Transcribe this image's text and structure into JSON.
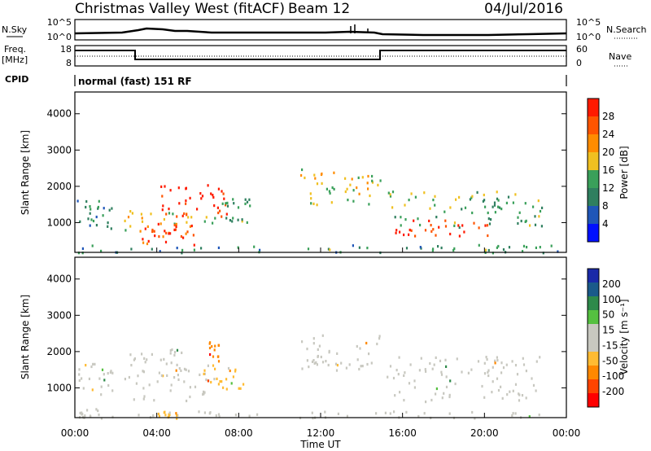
{
  "header": {
    "station": "Christmas Valley West (fitACF)",
    "beam": "Beam 12",
    "date": "04/Jul/2016"
  },
  "panel_labels": {
    "nsky": "N.Sky",
    "nsearch": "N.Search",
    "freq": "Freq.",
    "freq_unit": "[MHz]",
    "nave": "Nave",
    "cpid": "CPID",
    "cpid_value": "normal (fast) 151 RF",
    "nsky_ticks": [
      "10^5",
      "10^0"
    ],
    "nsearch_ticks": [
      "10^5",
      "10^0"
    ],
    "freq_ticks": [
      "18",
      "8"
    ],
    "nave_ticks": [
      "60",
      "0"
    ]
  },
  "colors": {
    "power_scale": [
      "#0010ff",
      "#1f56b8",
      "#2f7f5f",
      "#3aa05a",
      "#f0c020",
      "#ff8c00",
      "#ff5500",
      "#ff1a00"
    ],
    "velocity_scale": [
      "#ff0000",
      "#ff4400",
      "#ff8800",
      "#ffbb33",
      "#c8c8c0",
      "#c8c8c0",
      "#55c040",
      "#2e8a4a",
      "#1a5a8a",
      "#1a2aa8"
    ]
  },
  "chart_data": [
    {
      "type": "heatmap",
      "name": "power",
      "ylabel": "Slant Range [km]",
      "ylim": [
        180,
        4600
      ],
      "xlim": [
        0,
        24
      ],
      "yticks": [
        1000,
        2000,
        3000,
        4000
      ],
      "colorbar_label": "Power [dB]",
      "colorbar_ticks": [
        "4",
        "8",
        "12",
        "16",
        "20",
        "24",
        "28"
      ],
      "colorbar_range": [
        0,
        32
      ],
      "regions": [
        {
          "t0": 0.1,
          "t1": 1.9,
          "r0": 820,
          "r1": 1700,
          "v": 10
        },
        {
          "t0": 2.4,
          "t1": 5.8,
          "r0": 650,
          "r1": 1350,
          "v": 20
        },
        {
          "t0": 3.2,
          "t1": 5.9,
          "r0": 400,
          "r1": 1000,
          "v": 28
        },
        {
          "t0": 3.8,
          "t1": 7.4,
          "r0": 1200,
          "r1": 2100,
          "v": 29
        },
        {
          "t0": 6.2,
          "t1": 8.6,
          "r0": 1000,
          "r1": 1700,
          "v": 13
        },
        {
          "t0": 11.0,
          "t1": 15.0,
          "r0": 1500,
          "r1": 2500,
          "v": 18
        },
        {
          "t0": 15.2,
          "t1": 22.8,
          "r0": 900,
          "r1": 1900,
          "v": 14
        },
        {
          "t0": 15.6,
          "t1": 20.4,
          "r0": 650,
          "r1": 1100,
          "v": 29
        },
        {
          "t0": 0.0,
          "t1": 24.0,
          "r0": 190,
          "r1": 420,
          "v": 12
        }
      ]
    },
    {
      "type": "heatmap",
      "name": "velocity",
      "ylabel": "Slant Range [km]",
      "xlabel": "Time UT",
      "ylim": [
        180,
        4600
      ],
      "xlim": [
        0,
        24
      ],
      "xticks": [
        "00:00",
        "04:00",
        "08:00",
        "12:00",
        "16:00",
        "20:00",
        "00:00"
      ],
      "yticks": [
        1000,
        2000,
        3000,
        4000
      ],
      "colorbar_label": "Velocity [m s⁻¹]",
      "colorbar_ticks": [
        "200",
        "100",
        "50",
        "15",
        "-15",
        "-50",
        "-100",
        "-200"
      ],
      "colorbar_range": [
        -250,
        250
      ],
      "regions": [
        {
          "t0": 0.1,
          "t1": 1.9,
          "r0": 820,
          "r1": 1700,
          "v": 0
        },
        {
          "t0": 2.4,
          "t1": 6.9,
          "r0": 650,
          "r1": 2100,
          "v": 0
        },
        {
          "t0": 6.2,
          "t1": 8.2,
          "r0": 1000,
          "r1": 1700,
          "v": -70
        },
        {
          "t0": 6.5,
          "t1": 7.0,
          "r0": 1700,
          "r1": 2300,
          "v": -150
        },
        {
          "t0": 11.0,
          "t1": 15.0,
          "r0": 1500,
          "r1": 2500,
          "v": 0
        },
        {
          "t0": 15.2,
          "t1": 22.8,
          "r0": 650,
          "r1": 1900,
          "v": 0
        },
        {
          "t0": 4.0,
          "t1": 5.2,
          "r0": 190,
          "r1": 400,
          "v": -90
        },
        {
          "t0": 0.0,
          "t1": 24.0,
          "r0": 190,
          "r1": 380,
          "v": -30
        },
        {
          "t0": 0.2,
          "t1": 1.2,
          "r0": 190,
          "r1": 450,
          "v": 40
        }
      ]
    }
  ]
}
